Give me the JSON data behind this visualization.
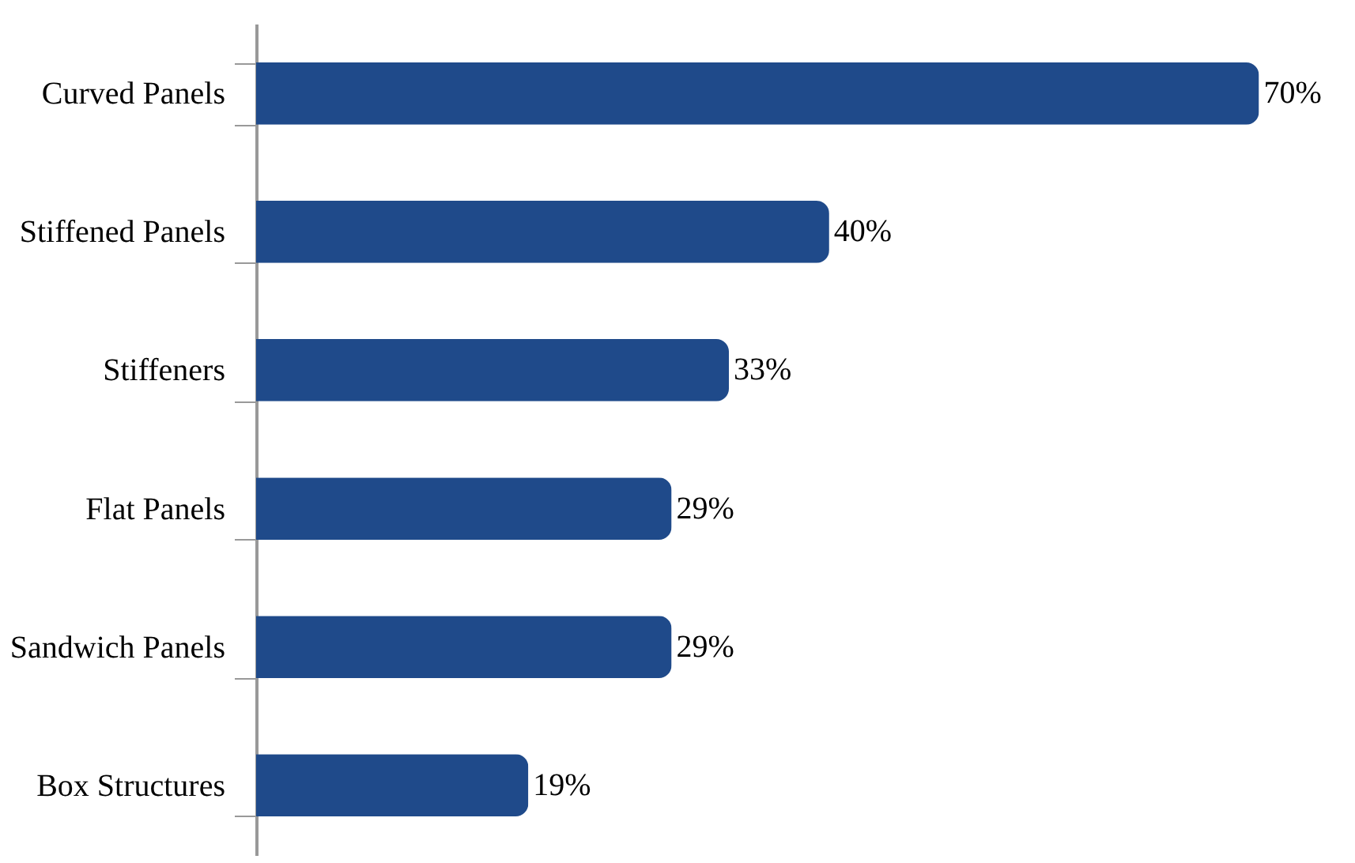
{
  "chart_data": {
    "type": "bar",
    "orientation": "horizontal",
    "categories": [
      "Curved Panels",
      "Stiffened Panels",
      "Stiffeners",
      "Flat Panels",
      "Sandwich Panels",
      "Box Structures"
    ],
    "values": [
      70,
      40,
      33,
      29,
      29,
      19
    ],
    "value_labels": [
      "70%",
      "40%",
      "33%",
      "29%",
      "29%",
      "19%"
    ],
    "color": "#1f4a8a",
    "grid": false
  }
}
